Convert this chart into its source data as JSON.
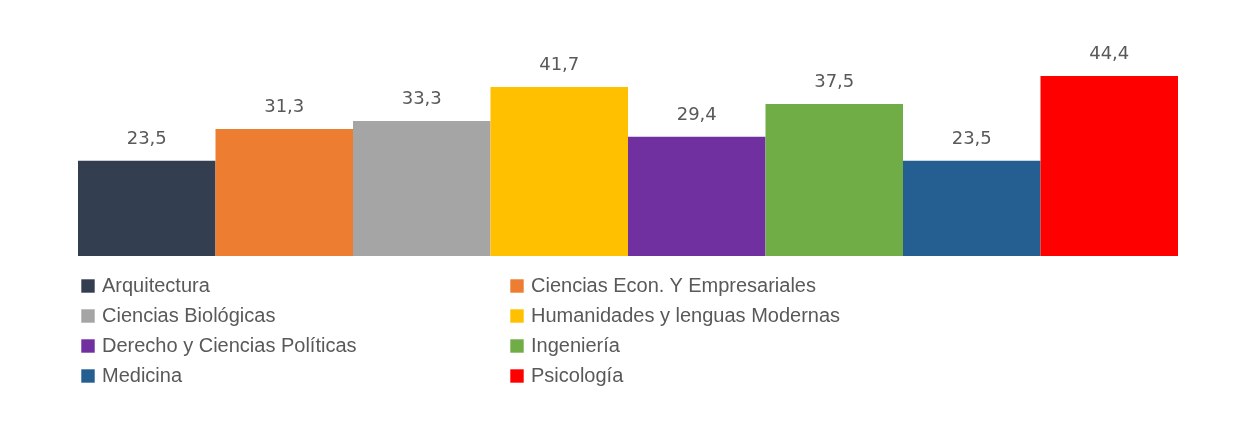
{
  "chart_data": {
    "type": "bar",
    "categories": [
      null
    ],
    "legend": "bottom",
    "series": [
      {
        "name": "Arquitectura",
        "color": "#333f50",
        "values": [
          23.5
        ],
        "value_labels": [
          "23,5"
        ]
      },
      {
        "name": "Ciencias Econ. Y Empresariales",
        "color": "#ed7d31",
        "values": [
          31.3
        ],
        "value_labels": [
          "31,3"
        ]
      },
      {
        "name": "Ciencias Biológicas",
        "color": "#a5a5a5",
        "values": [
          33.3
        ],
        "value_labels": [
          "33,3"
        ]
      },
      {
        "name": "Humanidades y lenguas Modernas",
        "color": "#ffc000",
        "values": [
          41.7
        ],
        "value_labels": [
          "41,7"
        ]
      },
      {
        "name": "Derecho y Ciencias Políticas",
        "color": "#7030a0",
        "values": [
          29.4
        ],
        "value_labels": [
          "29,4"
        ]
      },
      {
        "name": "Ingeniería",
        "color": "#70ad47",
        "values": [
          37.5
        ],
        "value_labels": [
          "37,5"
        ]
      },
      {
        "name": "Medicina",
        "color": "#255e91",
        "values": [
          23.5
        ],
        "value_labels": [
          "23,5"
        ]
      },
      {
        "name": "Psicología",
        "color": "#ff0000",
        "values": [
          44.4
        ],
        "value_labels": [
          "44,4"
        ]
      }
    ]
  }
}
